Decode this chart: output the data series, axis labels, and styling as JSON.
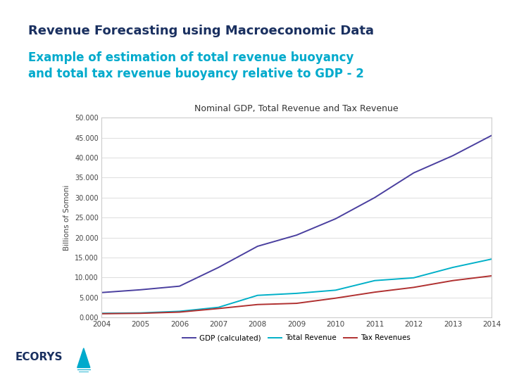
{
  "title_main": "Revenue Forecasting using Macroeconomic Data",
  "title_sub": "Example of estimation of total revenue buoyancy\nand total tax revenue buoyancy relative to GDP - 2",
  "chart_title": "Nominal GDP, Total Revenue and Tax Revenue",
  "ylabel": "Billions of Somoni",
  "years": [
    2004,
    2005,
    2006,
    2007,
    2008,
    2009,
    2010,
    2011,
    2012,
    2013,
    2014
  ],
  "gdp": [
    6200,
    6900,
    7800,
    12500,
    17800,
    20600,
    24700,
    30000,
    36200,
    40500,
    45600
  ],
  "total_revenue": [
    1000,
    1100,
    1500,
    2500,
    5500,
    6000,
    6800,
    9200,
    9900,
    12500,
    14600
  ],
  "tax_revenue": [
    900,
    1000,
    1300,
    2200,
    3200,
    3500,
    4800,
    6300,
    7500,
    9200,
    10400
  ],
  "gdp_color": "#4a3f9f",
  "total_revenue_color": "#00b0c8",
  "tax_revenue_color": "#b03030",
  "background_color": "#ffffff",
  "chart_bg": "#ffffff",
  "chart_border": "#cccccc",
  "yticks": [
    0,
    5000,
    10000,
    15000,
    20000,
    25000,
    30000,
    35000,
    40000,
    45000,
    50000
  ],
  "ytick_labels": [
    "0.000",
    "5.000",
    "10.000",
    "15.000",
    "20.000",
    "25.000",
    "30.000",
    "35.000",
    "40.000",
    "45.000",
    "50.000"
  ],
  "main_title_color": "#1a3060",
  "sub_title_color": "#00aacc",
  "legend_labels": [
    "GDP (calculated)",
    "Total Revenue",
    "Tax Revenues"
  ],
  "ecorys_color": "#1a3060",
  "ecorys_triangle_color": "#00aacc"
}
